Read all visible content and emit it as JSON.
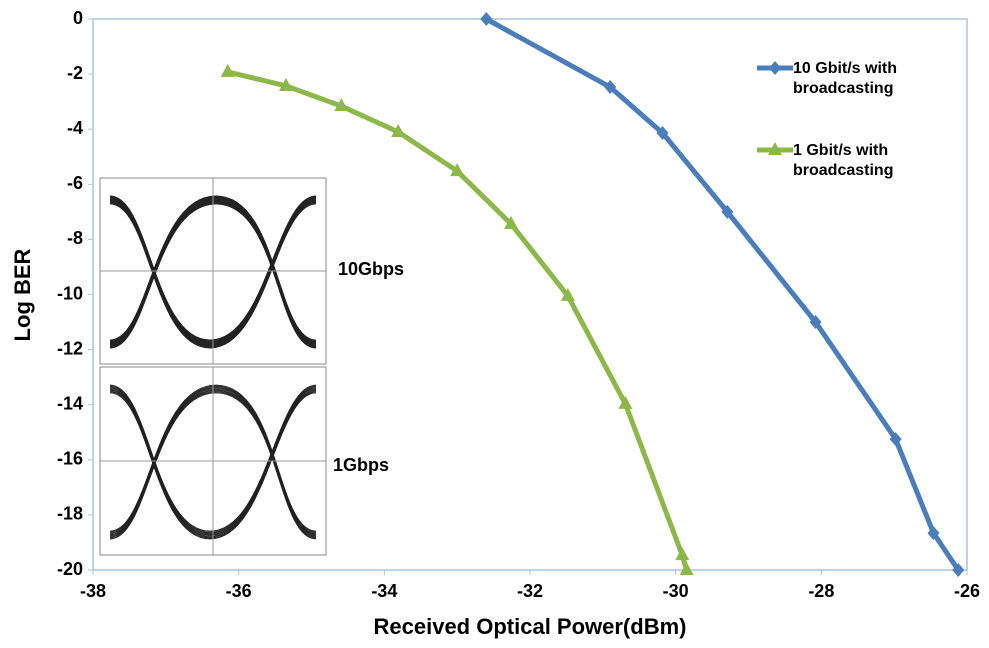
{
  "chart_data": {
    "type": "line",
    "xlabel": "Received Optical Power(dBm)",
    "ylabel": "Log BER",
    "xlim": [
      -38,
      -26
    ],
    "xticks": [
      -38,
      -36,
      -34,
      -32,
      -30,
      -28,
      -26
    ],
    "ylim": [
      -20,
      0
    ],
    "yticks": [
      0,
      -2,
      -4,
      -6,
      -8,
      -10,
      -12,
      -14,
      -16,
      -18,
      -20
    ],
    "series": [
      {
        "name": "10 Gbit/s with broadcasting",
        "color": "#4a7ebb",
        "marker": "diamond",
        "x": [
          -32.6,
          -30.9,
          -30.18,
          -29.29,
          -28.08,
          -26.98,
          -26.46,
          -26.12
        ],
        "values": [
          0,
          -2.47,
          -4.14,
          -7.0,
          -11.0,
          -15.25,
          -18.66,
          -20
        ]
      },
      {
        "name": "1 Gbit/s with broadcasting",
        "color": "#8cb84a",
        "marker": "triangle",
        "x": [
          -36.15,
          -35.35,
          -34.59,
          -33.81,
          -33.0,
          -32.26,
          -31.48,
          -30.69,
          -29.91,
          -29.85
        ],
        "values": [
          -1.92,
          -2.43,
          -3.16,
          -4.1,
          -5.52,
          -7.44,
          -10.05,
          -13.97,
          -19.46,
          -20
        ]
      }
    ],
    "annotations": [
      "10Gbps",
      "1Gbps"
    ]
  }
}
